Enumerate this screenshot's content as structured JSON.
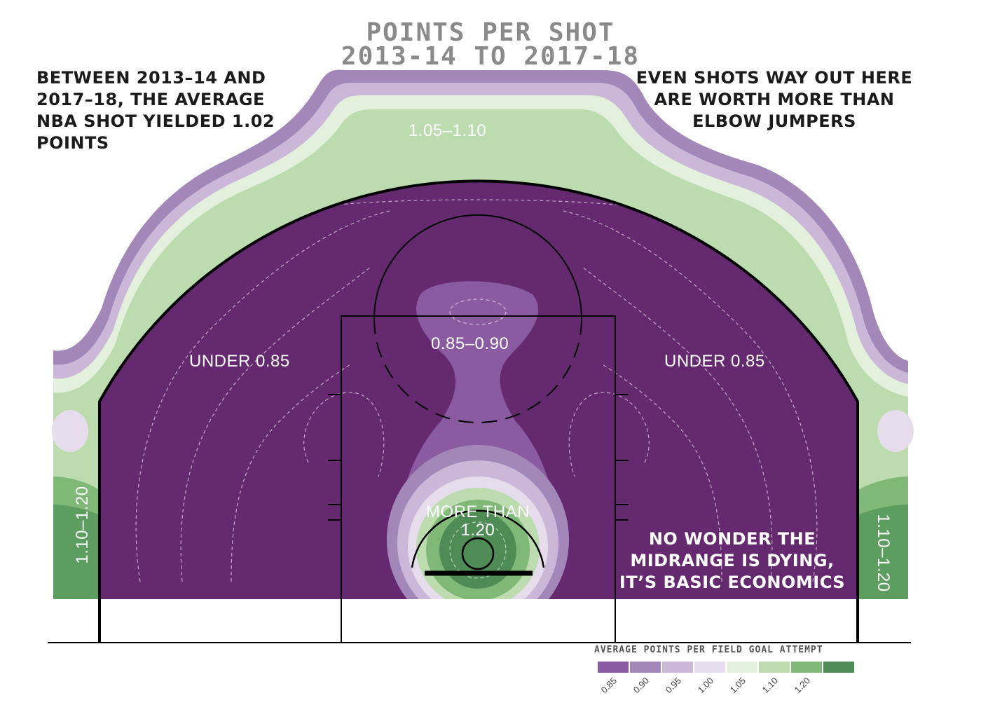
{
  "chart_data": {
    "type": "heatmap",
    "title": [
      "POINTS PER SHOT",
      "2013-14 TO 2017-18"
    ],
    "measure": "AVERAGE POINTS PER FIELD GOAL ATTEMPT",
    "legend": {
      "title": "AVERAGE POINTS PER FIELD GOAL ATTEMPT",
      "bins": [
        {
          "label": "0.85",
          "color": "#8a5ba0"
        },
        {
          "label": "0.90",
          "color": "#a387b8"
        },
        {
          "label": "0.95",
          "color": "#cbb7d8"
        },
        {
          "label": "1.00",
          "color": "#e6dcec"
        },
        {
          "label": "1.05",
          "color": "#e3f0dc"
        },
        {
          "label": "1.10",
          "color": "#bcdcb0"
        },
        {
          "label": "1.20",
          "color": "#7fb877"
        },
        {
          "label": "",
          "color": "#4f8b54"
        }
      ]
    },
    "zones": [
      {
        "label": "UNDER 0.85",
        "region": "left midrange",
        "value": "< 0.85"
      },
      {
        "label": "UNDER 0.85",
        "region": "right midrange",
        "value": "< 0.85"
      },
      {
        "label": "0.85–0.90",
        "region": "top of the key",
        "value": "0.85–0.90"
      },
      {
        "label": "MORE THAN 1.20",
        "region": "restricted area",
        "value": "> 1.20"
      },
      {
        "label": "1.05–1.10",
        "region": "above the break three",
        "value": "1.05–1.10"
      },
      {
        "label": "1.10–1.20",
        "region": "left corner three",
        "value": "1.10–1.20"
      },
      {
        "label": "1.10–1.20",
        "region": "right corner three",
        "value": "1.10–1.20"
      }
    ]
  },
  "annotations": {
    "top_left": "BETWEEN 2013–14 AND 2017–18, THE AVERAGE NBA SHOT YIELDED 1.02 POINTS",
    "top_right": "EVEN SHOTS WAY OUT HERE ARE WORTH MORE THAN ELBOW JUMPERS",
    "bottom_right": "NO WONDER THE MIDRANGE IS DYING, IT’S BASIC ECONOMICS"
  },
  "colors": {
    "base_purple": "#65296f",
    "mid_purple": "#8a5ba0",
    "light_green": "#e3f0dc",
    "mid_green": "#a8d49b",
    "dark_green": "#4f8b54",
    "title_gray": "#8a8a8a"
  }
}
